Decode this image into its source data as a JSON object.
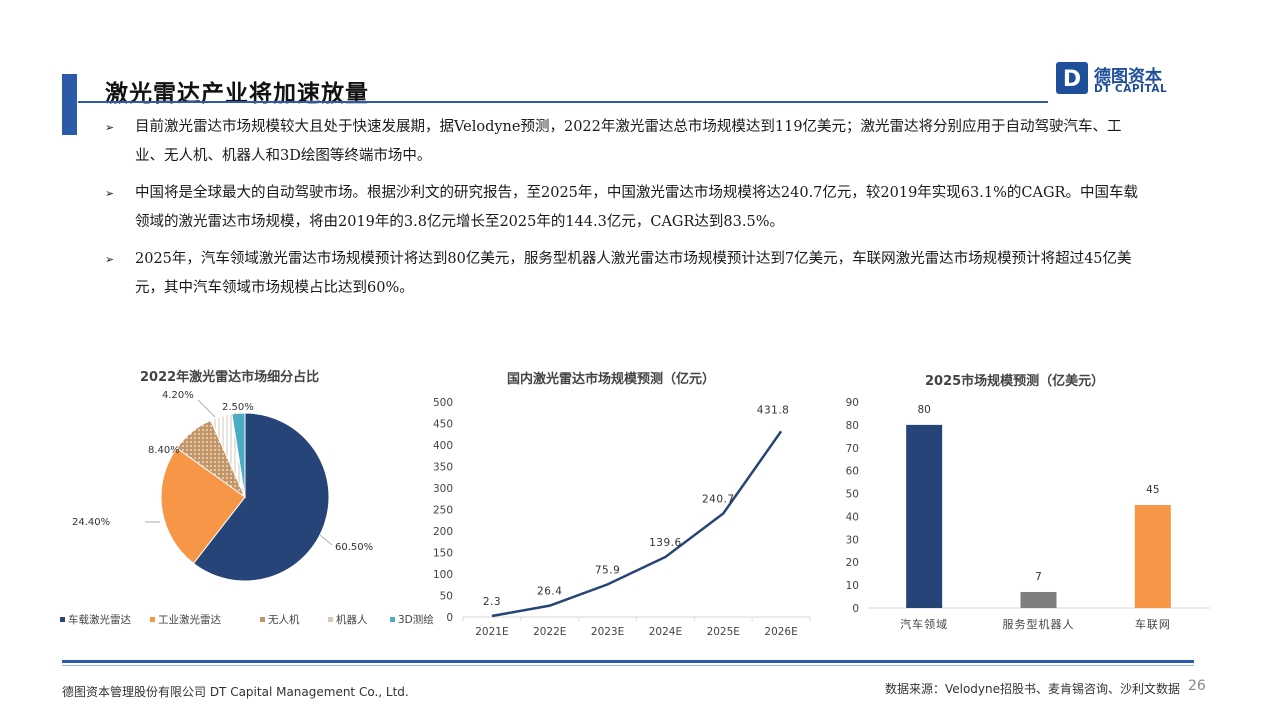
{
  "header": {
    "title": "激光雷达产业将加速放量",
    "logo_cn": "德图资本",
    "logo_en": "DT CAPITAL",
    "logo_letter": "D"
  },
  "bullets": [
    "目前激光雷达市场规模较大且处于快速发展期，据Velodyne预测，2022年激光雷达总市场规模达到119亿美元；激光雷达将分别应用于自动驾驶汽车、工业、无人机、机器人和3D绘图等终端市场中。",
    "中国将是全球最大的自动驾驶市场。根据沙利文的研究报告，至2025年，中国激光雷达市场规模将达240.7亿元，较2019年实现63.1%的CAGR。中国车载领域的激光雷达市场规模，将由2019年的3.8亿元增长至2025年的144.3亿元，CAGR达到83.5%。",
    "2025年，汽车领域激光雷达市场规模预计将达到80亿美元，服务型机器人激光雷达市场规模预计达到7亿美元，车联网激光雷达市场规模预计将超过45亿美元，其中汽车领域市场规模占比达到60%。"
  ],
  "bullet_marker": "➢",
  "colors": {
    "accent": "#2b5aa8",
    "navy": "#264478",
    "orange": "#f79646",
    "gray": "#7f7f7f",
    "tan": "#c0956a",
    "cyan": "#4bacc6"
  },
  "chart_data": [
    {
      "type": "pie",
      "title": "2022年激光雷达市场细分占比",
      "labels": [
        "车载激光雷达",
        "工业激光雷达",
        "无人机",
        "机器人",
        "3D测绘"
      ],
      "values": [
        60.5,
        24.4,
        8.4,
        4.2,
        2.5
      ],
      "value_labels": [
        "60.50%",
        "24.40%",
        "8.40%",
        "4.20%",
        "2.50%"
      ],
      "colors": [
        "#264478",
        "#f79646",
        "#c0956a",
        "#e9ddd3",
        "#4bacc6"
      ],
      "legend_position": "bottom"
    },
    {
      "type": "line",
      "title": "国内激光雷达市场规模预测（亿元）",
      "categories": [
        "2021E",
        "2022E",
        "2023E",
        "2024E",
        "2025E",
        "2026E"
      ],
      "values": [
        2.3,
        26.4,
        75.9,
        139.6,
        240.7,
        431.8
      ],
      "value_labels": [
        "2.3",
        "26.4",
        "75.9",
        "139.6",
        "240.7",
        "431.8"
      ],
      "ylim": [
        0,
        500
      ],
      "yticks": [
        "0",
        "50",
        "100",
        "150",
        "200",
        "250",
        "300",
        "350",
        "400",
        "450",
        "500"
      ],
      "grid": false
    },
    {
      "type": "bar",
      "title": "2025市场规模预测（亿美元）",
      "categories": [
        "汽车领域",
        "服务型机器人",
        "车联网"
      ],
      "values": [
        80,
        7,
        45
      ],
      "value_labels": [
        "80",
        "7",
        "45"
      ],
      "colors": [
        "#264478",
        "#7f7f7f",
        "#f79646"
      ],
      "ylim": [
        0,
        90
      ],
      "yticks": [
        "0",
        "10",
        "20",
        "30",
        "40",
        "50",
        "60",
        "70",
        "80",
        "90"
      ],
      "grid": false
    }
  ],
  "footer": {
    "company": "德图资本管理股份有限公司 DT Capital Management Co., Ltd.",
    "source": "数据来源：Velodyne招股书、麦肯锡咨询、沙利文数据",
    "page": "26"
  }
}
